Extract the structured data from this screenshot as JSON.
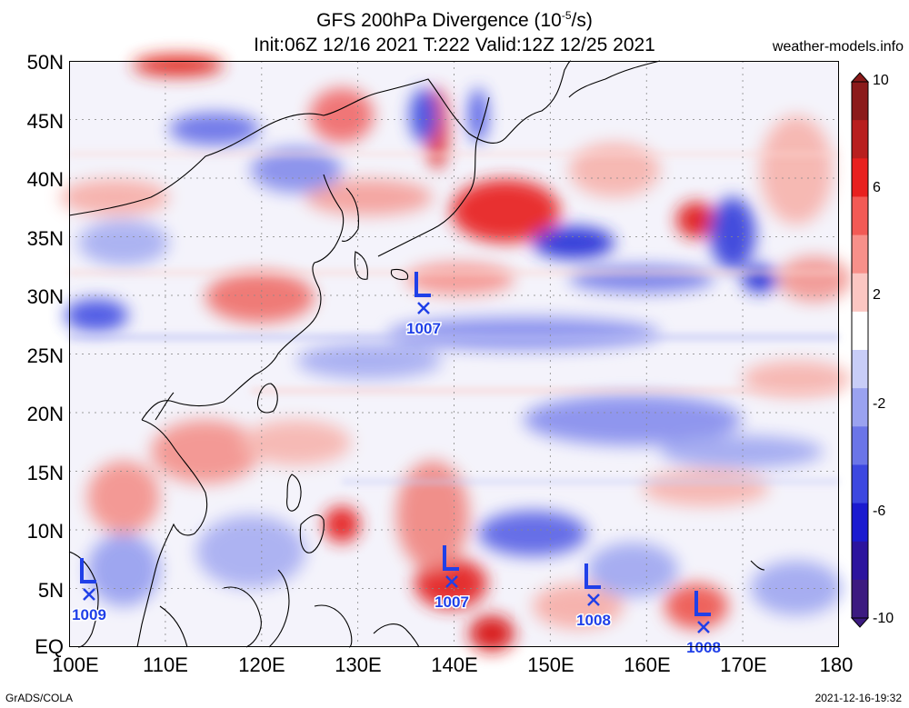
{
  "title": {
    "line1_prefix": "GFS 200hPa Divergence (10",
    "line1_exp": "-5",
    "line1_suffix": "/s)",
    "line2": "Init:06Z 12/16 2021 T:222 Valid:12Z 12/25 2021"
  },
  "site": "weather-models.info",
  "footer": {
    "left": "GrADS/COLA",
    "right": "2021-12-16-19:32"
  },
  "y_ticks": [
    "50N",
    "45N",
    "40N",
    "35N",
    "30N",
    "25N",
    "20N",
    "15N",
    "10N",
    "5N",
    "EQ"
  ],
  "x_ticks": [
    "100E",
    "110E",
    "120E",
    "130E",
    "140E",
    "150E",
    "160E",
    "170E",
    "180"
  ],
  "colorbar": {
    "labels": [
      "10",
      "6",
      "2",
      "-2",
      "-6",
      "-10"
    ],
    "colors": [
      "#8b1a1a",
      "#b81f1f",
      "#e8201f",
      "#f25a55",
      "#f7908a",
      "#fbc6c2",
      "#ffffff",
      "#c8cdf7",
      "#9aa2f0",
      "#6b75e8",
      "#3c47e0",
      "#1a1ad0",
      "#2c149e",
      "#3c1a80"
    ]
  },
  "pressure_lows": [
    {
      "letter": "L",
      "value": "1007"
    },
    {
      "letter": "L",
      "value": "1009"
    },
    {
      "letter": "L",
      "value": "1007"
    },
    {
      "letter": "L",
      "value": "1008"
    },
    {
      "letter": "L",
      "value": "1008"
    }
  ]
}
